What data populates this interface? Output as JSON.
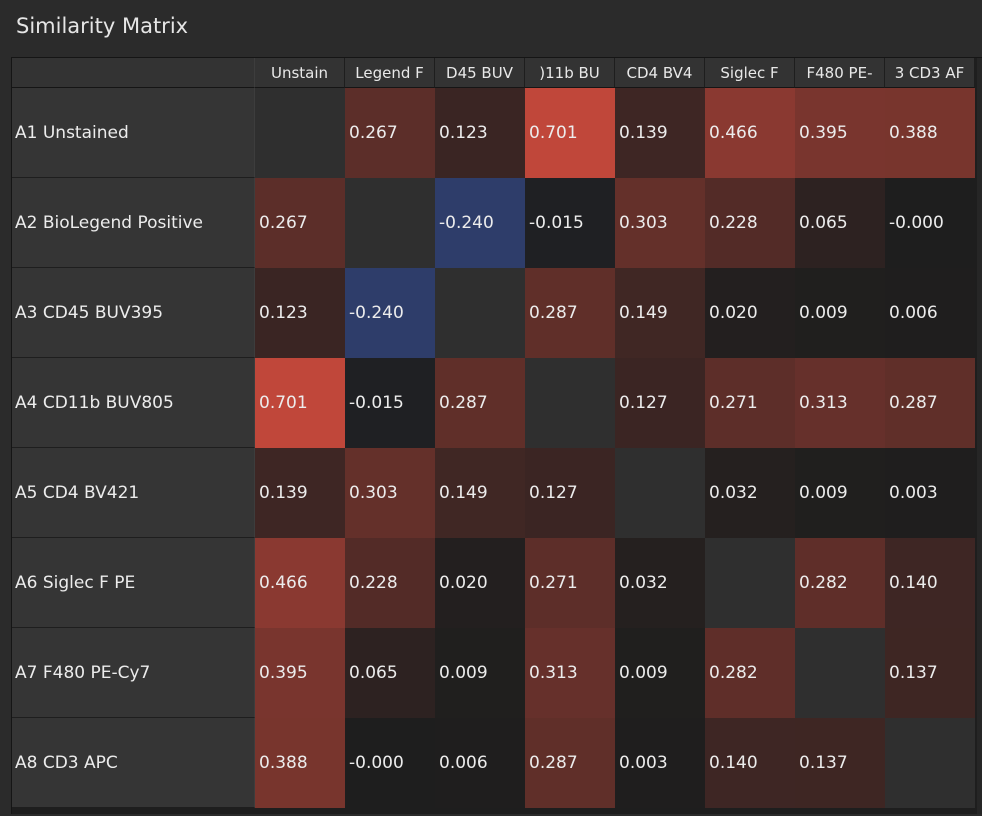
{
  "panel": {
    "title": "Similarity Matrix"
  },
  "matrix": {
    "column_headers": [
      "Unstain",
      "Legend F",
      "D45 BUV",
      ")11b BU",
      "CD4 BV4",
      "Siglec F",
      "F480 PE-",
      "3 CD3 AF"
    ],
    "row_labels": [
      "A1 Unstained",
      "A2 BioLegend Positive",
      "A3 CD45 BUV395",
      "A4 CD11b BUV805",
      "A5 CD4 BV421",
      "A6 Siglec F PE",
      "A7 F480 PE-Cy7",
      "A8 CD3 APC"
    ],
    "values": [
      [
        null,
        "0.267",
        "0.123",
        "0.701",
        "0.139",
        "0.466",
        "0.395",
        "0.388"
      ],
      [
        "0.267",
        null,
        "-0.240",
        "-0.015",
        "0.303",
        "0.228",
        "0.065",
        "-0.000"
      ],
      [
        "0.123",
        "-0.240",
        null,
        "0.287",
        "0.149",
        "0.020",
        "0.009",
        "0.006"
      ],
      [
        "0.701",
        "-0.015",
        "0.287",
        null,
        "0.127",
        "0.271",
        "0.313",
        "0.287"
      ],
      [
        "0.139",
        "0.303",
        "0.149",
        "0.127",
        null,
        "0.032",
        "0.009",
        "0.003"
      ],
      [
        "0.466",
        "0.228",
        "0.020",
        "0.271",
        "0.032",
        null,
        "0.282",
        "0.140"
      ],
      [
        "0.395",
        "0.065",
        "0.009",
        "0.313",
        "0.009",
        "0.282",
        null,
        "0.137"
      ],
      [
        "0.388",
        "-0.000",
        "0.006",
        "0.287",
        "0.003",
        "0.140",
        "0.137",
        null
      ]
    ],
    "colors": {
      "positive": "#c0473a",
      "negative": "#2e3d6a",
      "neutral": "#1e1e1e",
      "diagonal": "#2f2f2f"
    }
  }
}
